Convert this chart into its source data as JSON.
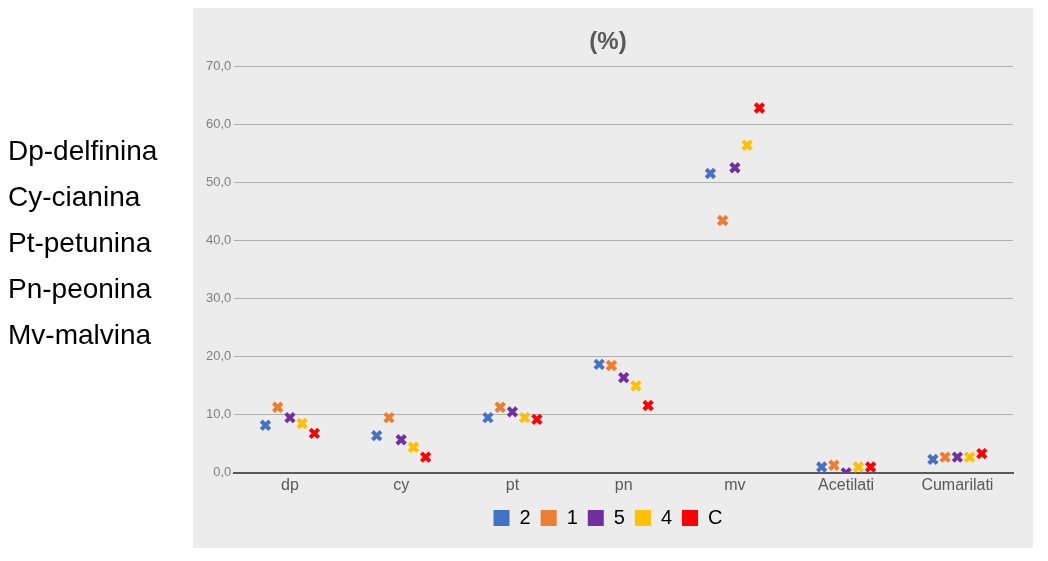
{
  "chart_data": {
    "type": "scatter",
    "title": "(%)",
    "categories": [
      "dp",
      "cy",
      "pt",
      "pn",
      "mv",
      "Acetilati",
      "Cumarilati"
    ],
    "series": [
      {
        "name": "2",
        "color": "#4472c4",
        "values": [
          8.2,
          6.4,
          9.5,
          18.7,
          51.6,
          1.0,
          2.3
        ]
      },
      {
        "name": "1",
        "color": "#ed7d31",
        "values": [
          11.3,
          9.5,
          11.3,
          18.5,
          43.5,
          1.3,
          2.7
        ]
      },
      {
        "name": "5",
        "color": "#7030a0",
        "values": [
          9.5,
          5.7,
          10.5,
          16.4,
          52.6,
          0.0,
          2.7
        ]
      },
      {
        "name": "4",
        "color": "#ffc000",
        "values": [
          8.5,
          4.4,
          9.5,
          15.0,
          56.5,
          1.0,
          2.7
        ]
      },
      {
        "name": "C",
        "color": "#ff0000",
        "values": [
          6.8,
          2.7,
          9.2,
          11.6,
          62.9,
          1.0,
          3.3
        ]
      }
    ],
    "ylim": [
      0,
      70
    ],
    "yticks": [
      {
        "value": 0,
        "label": "0,0"
      },
      {
        "value": 10,
        "label": "10,0"
      },
      {
        "value": 20,
        "label": "20,0"
      },
      {
        "value": 30,
        "label": "30,0"
      },
      {
        "value": 40,
        "label": "40,0"
      },
      {
        "value": 50,
        "label": "50,0"
      },
      {
        "value": 60,
        "label": "60,0"
      },
      {
        "value": 70,
        "label": "70,0"
      }
    ],
    "grid": "y",
    "legend": "bottom",
    "marker": "cross",
    "annotations": [
      "Dp-delfinina",
      "Cy-cianina",
      "Pt-petunina",
      "Pn-peonina",
      "Mv-malvina"
    ]
  }
}
